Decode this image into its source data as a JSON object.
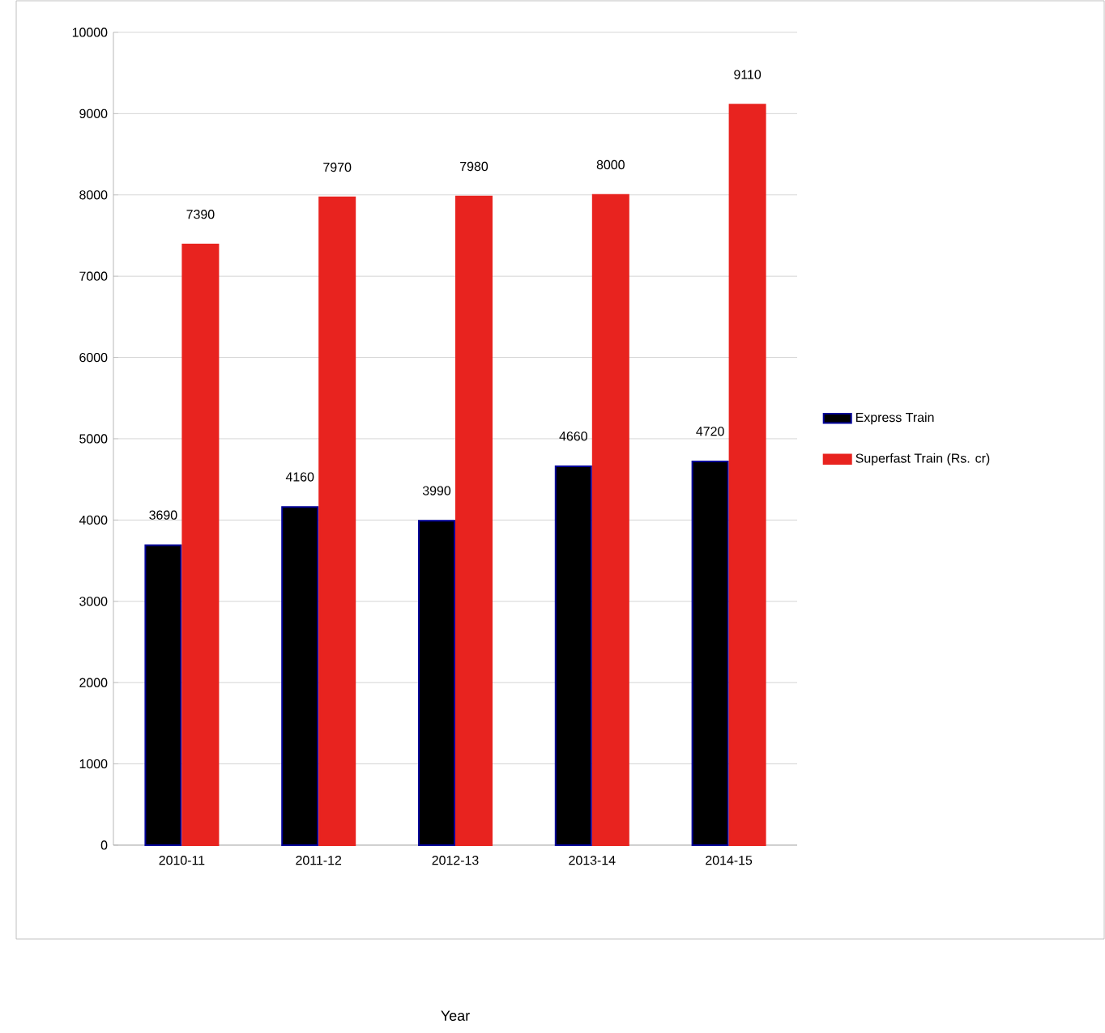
{
  "chart_data": {
    "type": "bar",
    "annotations": [
      "Year"
    ],
    "categories": [
      "2010-11",
      "2011-12",
      "2012-13",
      "2013-14",
      "2014-15"
    ],
    "series": [
      {
        "name": "Express Train",
        "color": "#000000",
        "values": [
          3690,
          4160,
          3990,
          4660,
          4720
        ]
      },
      {
        "name": "Superfast Train (Rs. cr)",
        "color": "#e8231f",
        "values": [
          7390,
          7970,
          7980,
          8000,
          9110
        ]
      }
    ],
    "ylim": [
      0,
      10000
    ],
    "yticks": [
      0,
      1000,
      2000,
      3000,
      4000,
      5000,
      6000,
      7000,
      8000,
      9000,
      10000
    ],
    "grid": "y",
    "legend": "right",
    "data_labels": true
  }
}
